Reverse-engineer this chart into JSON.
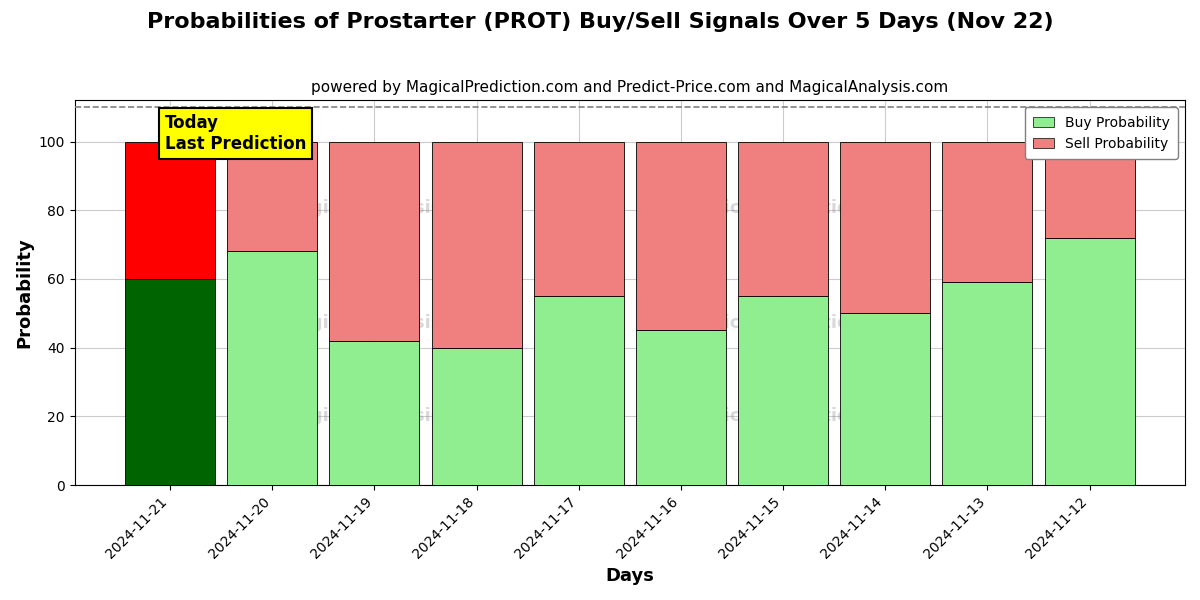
{
  "title": "Probabilities of Prostarter (PROT) Buy/Sell Signals Over 5 Days (Nov 22)",
  "subtitle": "powered by MagicalPrediction.com and Predict-Price.com and MagicalAnalysis.com",
  "xlabel": "Days",
  "ylabel": "Probability",
  "categories": [
    "2024-11-21",
    "2024-11-20",
    "2024-11-19",
    "2024-11-18",
    "2024-11-17",
    "2024-11-16",
    "2024-11-15",
    "2024-11-14",
    "2024-11-13",
    "2024-11-12"
  ],
  "buy_values": [
    60,
    68,
    42,
    40,
    55,
    45,
    55,
    50,
    59,
    72
  ],
  "sell_values": [
    40,
    32,
    58,
    60,
    45,
    55,
    45,
    50,
    41,
    28
  ],
  "today_buy_color": "#006400",
  "today_sell_color": "#FF0000",
  "buy_color": "#90EE90",
  "sell_color": "#F08080",
  "today_annotation_bg": "#FFFF00",
  "today_annotation_text": "Today\nLast Prediction",
  "ylim": [
    0,
    112
  ],
  "yticks": [
    0,
    20,
    40,
    60,
    80,
    100
  ],
  "dashed_line_y": 110,
  "background_color": "#ffffff",
  "grid_color": "#cccccc",
  "title_fontsize": 16,
  "subtitle_fontsize": 11,
  "legend_labels": [
    "Buy Probability",
    "Sell Probability"
  ]
}
